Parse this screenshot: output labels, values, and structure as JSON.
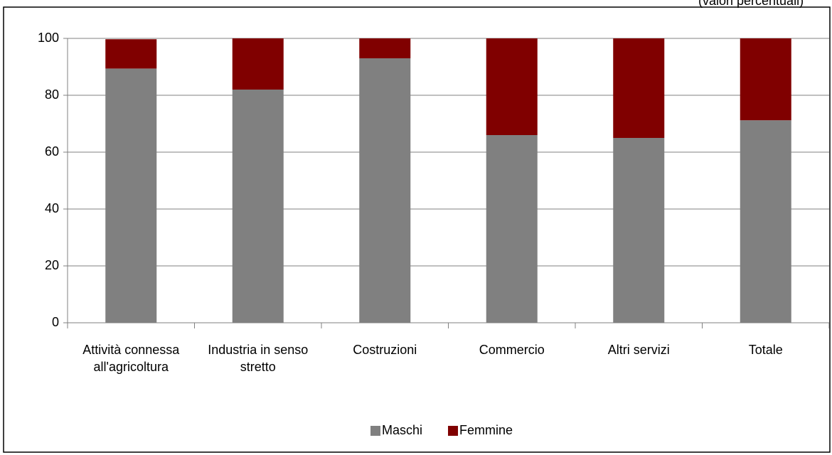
{
  "chart_data": {
    "type": "stacked_bar",
    "subtitle": "(valori percentuali)",
    "categories": [
      "Attività connessa all'agricoltura",
      "Industria in senso stretto",
      "Costruzioni",
      "Commercio",
      "Altri servizi",
      "Totale"
    ],
    "series": [
      {
        "name": "Maschi",
        "color": "#808080",
        "values": [
          89.4,
          82.0,
          93.0,
          66.0,
          65.0,
          71.2
        ]
      },
      {
        "name": "Femmine",
        "color": "#800000",
        "values": [
          10.3,
          18.0,
          7.0,
          34.0,
          35.0,
          28.8
        ]
      }
    ],
    "ylim": [
      0,
      100
    ],
    "yticks": [
      0,
      20,
      40,
      60,
      80,
      100
    ],
    "grid": true,
    "legend": "bottom"
  }
}
